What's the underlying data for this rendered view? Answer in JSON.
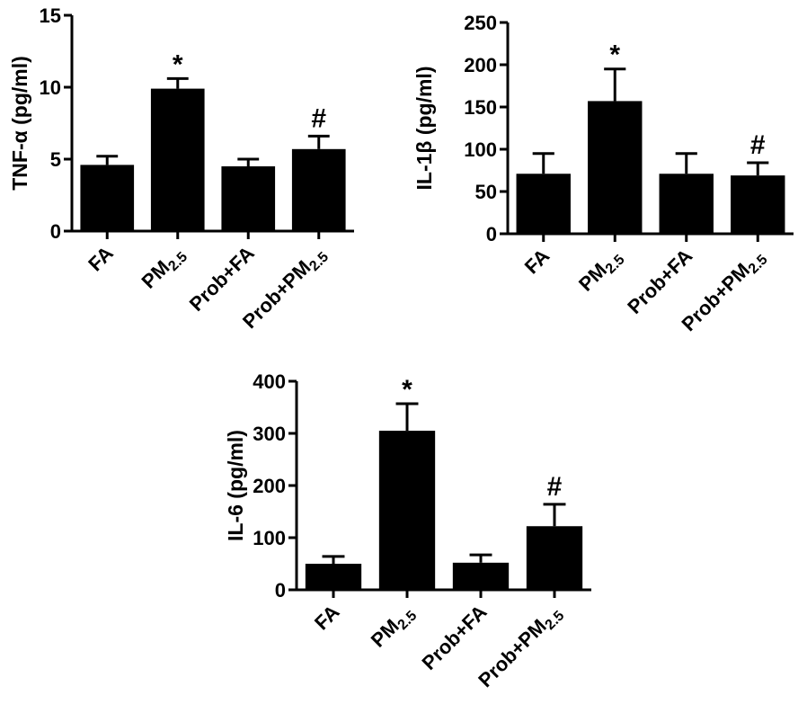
{
  "chart_data": [
    {
      "type": "bar",
      "ylabel": "TNF-α (pg/ml)",
      "ylim": [
        0,
        15
      ],
      "yticks": [
        "0",
        "5",
        "10",
        "15"
      ],
      "categories": [
        {
          "main": "FA",
          "sub": ""
        },
        {
          "main": "PM",
          "sub": "2.5"
        },
        {
          "main": "Prob+FA",
          "sub": ""
        },
        {
          "main": "Prob+PM",
          "sub": "2.5"
        }
      ],
      "values": [
        4.6,
        9.9,
        4.5,
        5.7
      ],
      "errors": [
        0.6,
        0.7,
        0.5,
        0.9
      ],
      "annotations": [
        "",
        "*",
        "",
        "#"
      ]
    },
    {
      "type": "bar",
      "ylabel": "IL-1β (pg/ml)",
      "ylim": [
        0,
        250
      ],
      "yticks": [
        "0",
        "50",
        "100",
        "150",
        "200",
        "250"
      ],
      "categories": [
        {
          "main": "FA",
          "sub": ""
        },
        {
          "main": "PM",
          "sub": "2.5"
        },
        {
          "main": "Prob+FA",
          "sub": ""
        },
        {
          "main": "Prob+PM",
          "sub": "2.5"
        }
      ],
      "values": [
        71,
        157,
        71,
        69
      ],
      "errors": [
        24,
        38,
        24,
        15
      ],
      "annotations": [
        "",
        "*",
        "",
        "#"
      ]
    },
    {
      "type": "bar",
      "ylabel": "IL-6 (pg/ml)",
      "ylim": [
        0,
        400
      ],
      "yticks": [
        "0",
        "100",
        "200",
        "300",
        "400"
      ],
      "categories": [
        {
          "main": "FA",
          "sub": ""
        },
        {
          "main": "PM",
          "sub": "2.5"
        },
        {
          "main": "Prob+FA",
          "sub": ""
        },
        {
          "main": "Prob+PM",
          "sub": "2.5"
        }
      ],
      "values": [
        50,
        305,
        52,
        122
      ],
      "errors": [
        14,
        52,
        15,
        42
      ],
      "annotations": [
        "",
        "*",
        "",
        "#"
      ]
    }
  ]
}
